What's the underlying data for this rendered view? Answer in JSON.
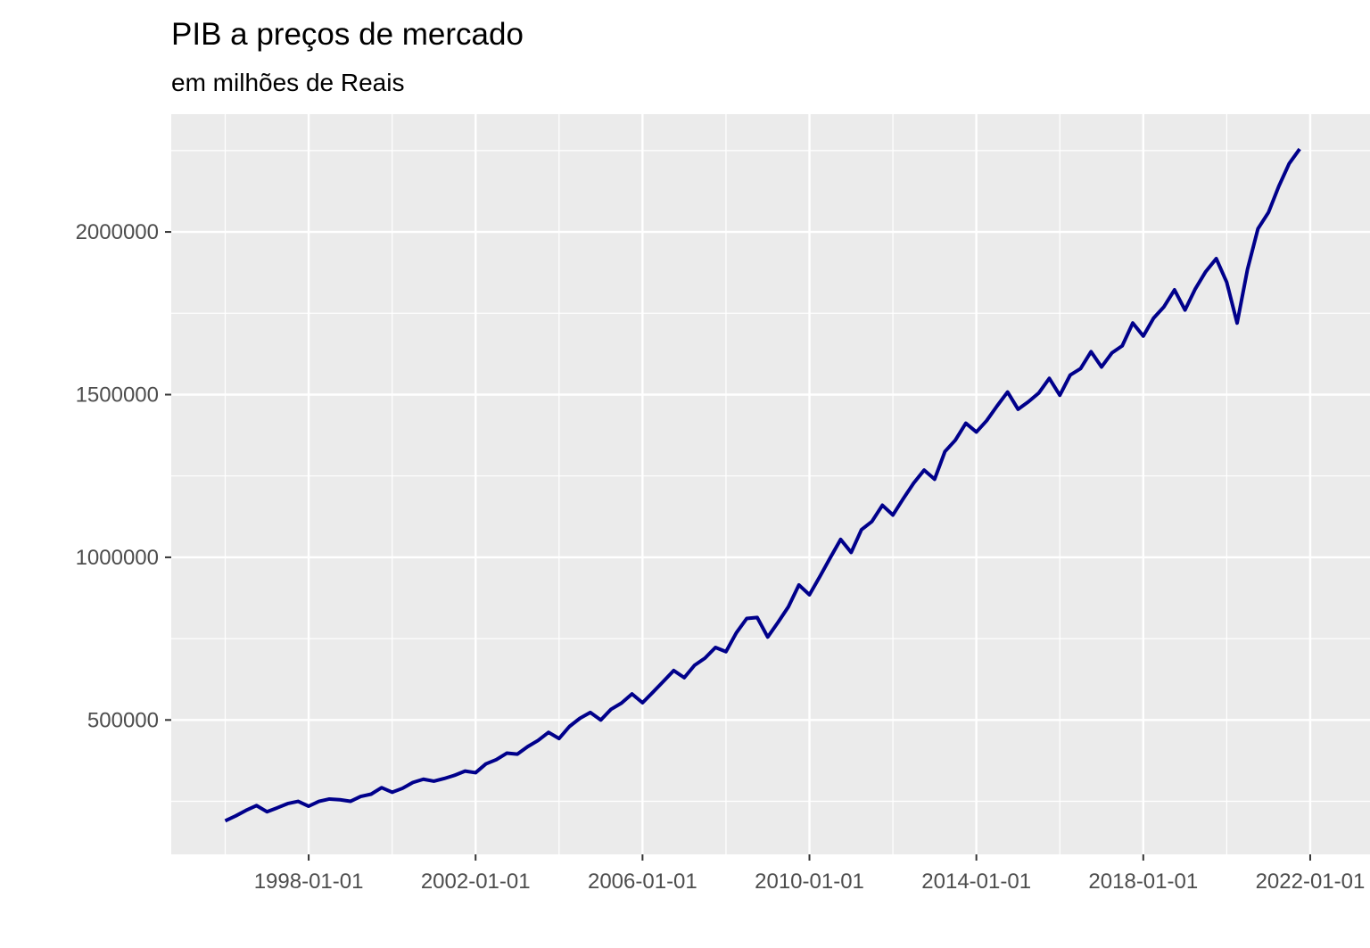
{
  "chart_data": {
    "type": "line",
    "title": "PIB a preços de mercado",
    "subtitle": "em milhões de Reais",
    "x": [
      "1996-01-01",
      "1996-04-01",
      "1996-07-01",
      "1996-10-01",
      "1997-01-01",
      "1997-04-01",
      "1997-07-01",
      "1997-10-01",
      "1998-01-01",
      "1998-04-01",
      "1998-07-01",
      "1998-10-01",
      "1999-01-01",
      "1999-04-01",
      "1999-07-01",
      "1999-10-01",
      "2000-01-01",
      "2000-04-01",
      "2000-07-01",
      "2000-10-01",
      "2001-01-01",
      "2001-04-01",
      "2001-07-01",
      "2001-10-01",
      "2002-01-01",
      "2002-04-01",
      "2002-07-01",
      "2002-10-01",
      "2003-01-01",
      "2003-04-01",
      "2003-07-01",
      "2003-10-01",
      "2004-01-01",
      "2004-04-01",
      "2004-07-01",
      "2004-10-01",
      "2005-01-01",
      "2005-04-01",
      "2005-07-01",
      "2005-10-01",
      "2006-01-01",
      "2006-04-01",
      "2006-07-01",
      "2006-10-01",
      "2007-01-01",
      "2007-04-01",
      "2007-07-01",
      "2007-10-01",
      "2008-01-01",
      "2008-04-01",
      "2008-07-01",
      "2008-10-01",
      "2009-01-01",
      "2009-04-01",
      "2009-07-01",
      "2009-10-01",
      "2010-01-01",
      "2010-04-01",
      "2010-07-01",
      "2010-10-01",
      "2011-01-01",
      "2011-04-01",
      "2011-07-01",
      "2011-10-01",
      "2012-01-01",
      "2012-04-01",
      "2012-07-01",
      "2012-10-01",
      "2013-01-01",
      "2013-04-01",
      "2013-07-01",
      "2013-10-01",
      "2014-01-01",
      "2014-04-01",
      "2014-07-01",
      "2014-10-01",
      "2015-01-01",
      "2015-04-01",
      "2015-07-01",
      "2015-10-01",
      "2016-01-01",
      "2016-04-01",
      "2016-07-01",
      "2016-10-01",
      "2017-01-01",
      "2017-04-01",
      "2017-07-01",
      "2017-10-01",
      "2018-01-01",
      "2018-04-01",
      "2018-07-01",
      "2018-10-01",
      "2019-01-01",
      "2019-04-01",
      "2019-07-01",
      "2019-10-01",
      "2020-01-01",
      "2020-04-01",
      "2020-07-01",
      "2020-10-01",
      "2021-01-01",
      "2021-04-01",
      "2021-07-01",
      "2021-10-01"
    ],
    "series": [
      {
        "name": "PIB",
        "color": "#00008b",
        "values": [
          190000,
          205000,
          222000,
          237000,
          218000,
          230000,
          243000,
          250000,
          235000,
          250000,
          257000,
          255000,
          250000,
          265000,
          272000,
          292000,
          278000,
          290000,
          308000,
          318000,
          312000,
          320000,
          330000,
          343000,
          338000,
          365000,
          378000,
          398000,
          395000,
          418000,
          437000,
          462000,
          443000,
          480000,
          505000,
          523000,
          500000,
          533000,
          552000,
          580000,
          553000,
          585000,
          618000,
          652000,
          630000,
          668000,
          690000,
          723000,
          710000,
          768000,
          812000,
          815000,
          755000,
          800000,
          848000,
          915000,
          885000,
          940000,
          998000,
          1055000,
          1015000,
          1085000,
          1110000,
          1160000,
          1130000,
          1180000,
          1228000,
          1268000,
          1240000,
          1325000,
          1360000,
          1412000,
          1385000,
          1420000,
          1465000,
          1508000,
          1455000,
          1478000,
          1505000,
          1550000,
          1498000,
          1560000,
          1580000,
          1632000,
          1585000,
          1628000,
          1650000,
          1720000,
          1680000,
          1735000,
          1770000,
          1822000,
          1760000,
          1825000,
          1878000,
          1918000,
          1845000,
          1720000,
          1885000,
          2010000,
          2060000,
          2140000,
          2210000,
          2255000
        ]
      }
    ],
    "xlim": [
      "1994-09-16",
      "2023-06-08"
    ],
    "xticks": [
      "1998-01-01",
      "2002-01-01",
      "2006-01-01",
      "2010-01-01",
      "2014-01-01",
      "2018-01-01",
      "2022-01-01"
    ],
    "ylim": [
      87000,
      2362000
    ],
    "yticks": [
      500000,
      1000000,
      1500000,
      2000000
    ],
    "grid": true
  }
}
